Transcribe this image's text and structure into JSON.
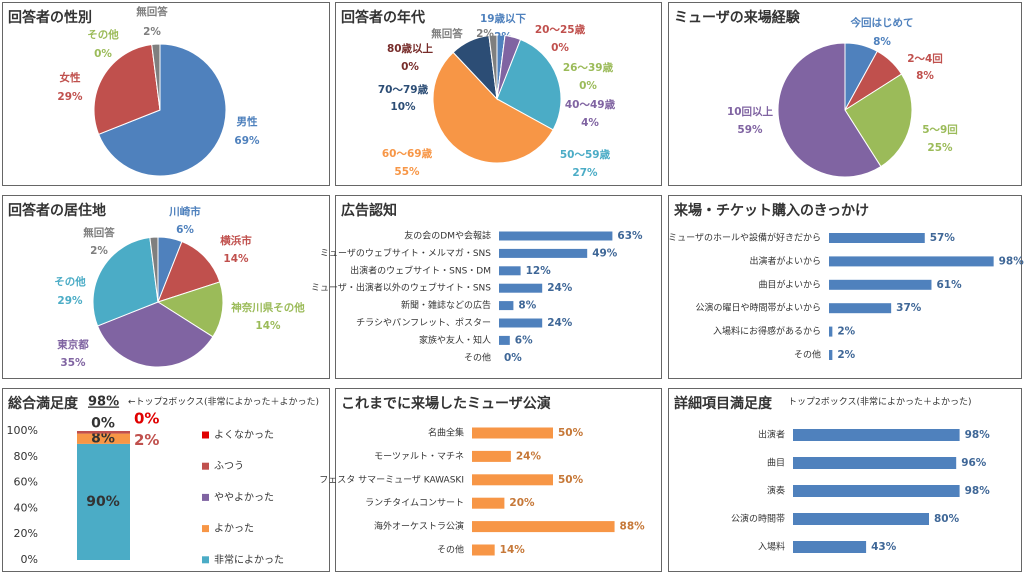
{
  "chart_data": [
    {
      "type": "pie",
      "title": "回答者の性別",
      "categories": [
        "男性",
        "女性",
        "その他",
        "無回答"
      ],
      "values": [
        69,
        29,
        0,
        2
      ],
      "value_labels": [
        "69%",
        "29%",
        "0%",
        "2%"
      ],
      "colors": [
        "#4f81bd",
        "#c0504d",
        "#9bbb59",
        "#7f7f7f"
      ]
    },
    {
      "type": "pie",
      "title": "回答者の年代",
      "categories": [
        "19歳以下",
        "20～25歳",
        "26～39歳",
        "40～49歳",
        "50～59歳",
        "60～69歳",
        "70～79歳",
        "80歳以上",
        "無回答"
      ],
      "values": [
        2,
        0,
        0,
        4,
        27,
        55,
        10,
        0,
        2
      ],
      "value_labels": [
        "2%",
        "0%",
        "0%",
        "4%",
        "27%",
        "55%",
        "10%",
        "0%",
        "2%"
      ],
      "colors": [
        "#4f81bd",
        "#c0504d",
        "#9bbb59",
        "#8064a2",
        "#4bacc6",
        "#f79646",
        "#2c4d75",
        "#772c2a",
        "#7f7f7f"
      ]
    },
    {
      "type": "pie",
      "title": "ミューザの来場経験",
      "categories": [
        "今回はじめて",
        "2～4回",
        "5～9回",
        "10回以上"
      ],
      "values": [
        8,
        8,
        25,
        59
      ],
      "value_labels": [
        "8%",
        "8%",
        "25%",
        "59%"
      ],
      "colors": [
        "#4f81bd",
        "#c0504d",
        "#9bbb59",
        "#8064a2"
      ]
    },
    {
      "type": "pie",
      "title": "回答者の居住地",
      "categories": [
        "川崎市",
        "横浜市",
        "神奈川県その他",
        "東京都",
        "その他",
        "無回答"
      ],
      "values": [
        6,
        14,
        14,
        35,
        29,
        2
      ],
      "value_labels": [
        "6%",
        "14%",
        "14%",
        "35%",
        "29%",
        "2%"
      ],
      "colors": [
        "#4f81bd",
        "#c0504d",
        "#9bbb59",
        "#8064a2",
        "#4bacc6",
        "#7f7f7f"
      ]
    },
    {
      "type": "hbar",
      "title": "広告認知",
      "categories": [
        "友の会のDMや会報誌",
        "ミューザのウェブサイト・メルマガ・SNS",
        "出演者のウェブサイト・SNS・DM",
        "ミューザ・出演者以外のウェブサイト・SNS",
        "新聞・雑誌などの広告",
        "チラシやパンフレット、ポスター",
        "家族や友人・知人",
        "その他"
      ],
      "values": [
        63,
        49,
        12,
        24,
        8,
        24,
        6,
        0
      ],
      "value_labels": [
        "63%",
        "49%",
        "12%",
        "24%",
        "8%",
        "24%",
        "6%",
        "0%"
      ],
      "color": "#4f81bd",
      "xlim": [
        0,
        100
      ]
    },
    {
      "type": "hbar",
      "title": "来場・チケット購入のきっかけ",
      "categories": [
        "ミューザのホールや設備が好きだから",
        "出演者がよいから",
        "曲目がよいから",
        "公演の曜日や時間帯がよいから",
        "入場料にお得感があるから",
        "その他"
      ],
      "values": [
        57,
        98,
        61,
        37,
        2,
        2
      ],
      "value_labels": [
        "57%",
        "98%",
        "61%",
        "37%",
        "2%",
        "2%"
      ],
      "color": "#4f81bd",
      "xlim": [
        0,
        100
      ]
    },
    {
      "type": "stacked",
      "title": "総合満足度",
      "annotations": [
        "98%",
        "←トップ2ボックス(非常によかった＋よかった)"
      ],
      "series": [
        {
          "name": "非常によかった",
          "color": "#4bacc6",
          "values": [
            90
          ],
          "value_labels": [
            "90%"
          ]
        },
        {
          "name": "よかった",
          "color": "#f79646",
          "values": [
            8
          ],
          "value_labels": [
            "8%"
          ]
        },
        {
          "name": "ややよかった",
          "color": "#8064a2",
          "values": [
            0
          ],
          "value_labels": [
            "0%"
          ]
        },
        {
          "name": "ふつう",
          "color": "#c0504d",
          "values": [
            2
          ],
          "value_labels": [
            "2%"
          ]
        },
        {
          "name": "よくなかった",
          "color": "#e00000",
          "values": [
            0
          ],
          "value_labels": [
            "0%"
          ]
        }
      ],
      "ylim": [
        0,
        100
      ],
      "yticks": [
        {
          "value": 0,
          "label": "0%"
        },
        {
          "value": 20,
          "label": "20%"
        },
        {
          "value": 40,
          "label": "40%"
        },
        {
          "value": 60,
          "label": "60%"
        },
        {
          "value": 80,
          "label": "80%"
        },
        {
          "value": 100,
          "label": "100%"
        }
      ]
    },
    {
      "type": "hbar",
      "title": "これまでに来場したミューザ公演",
      "categories": [
        "名曲全集",
        "モーツァルト・マチネ",
        "フェスタ サマーミューザ KAWASKI",
        "ランチタイムコンサート",
        "海外オーケストラ公演",
        "その他"
      ],
      "values": [
        50,
        24,
        50,
        20,
        88,
        14
      ],
      "value_labels": [
        "50%",
        "24%",
        "50%",
        "20%",
        "88%",
        "14%"
      ],
      "color": "#f79646",
      "xlim": [
        0,
        100
      ]
    },
    {
      "type": "hbar",
      "title": "詳細項目満足度",
      "subtitle": "トップ2ボックス(非常によかった＋よかった)",
      "categories": [
        "出演者",
        "曲目",
        "演奏",
        "公演の時間帯",
        "入場料"
      ],
      "values": [
        98,
        96,
        98,
        80,
        43
      ],
      "value_labels": [
        "98%",
        "96%",
        "98%",
        "80%",
        "43%"
      ],
      "color": "#4f81bd",
      "xlim": [
        0,
        100
      ]
    }
  ]
}
